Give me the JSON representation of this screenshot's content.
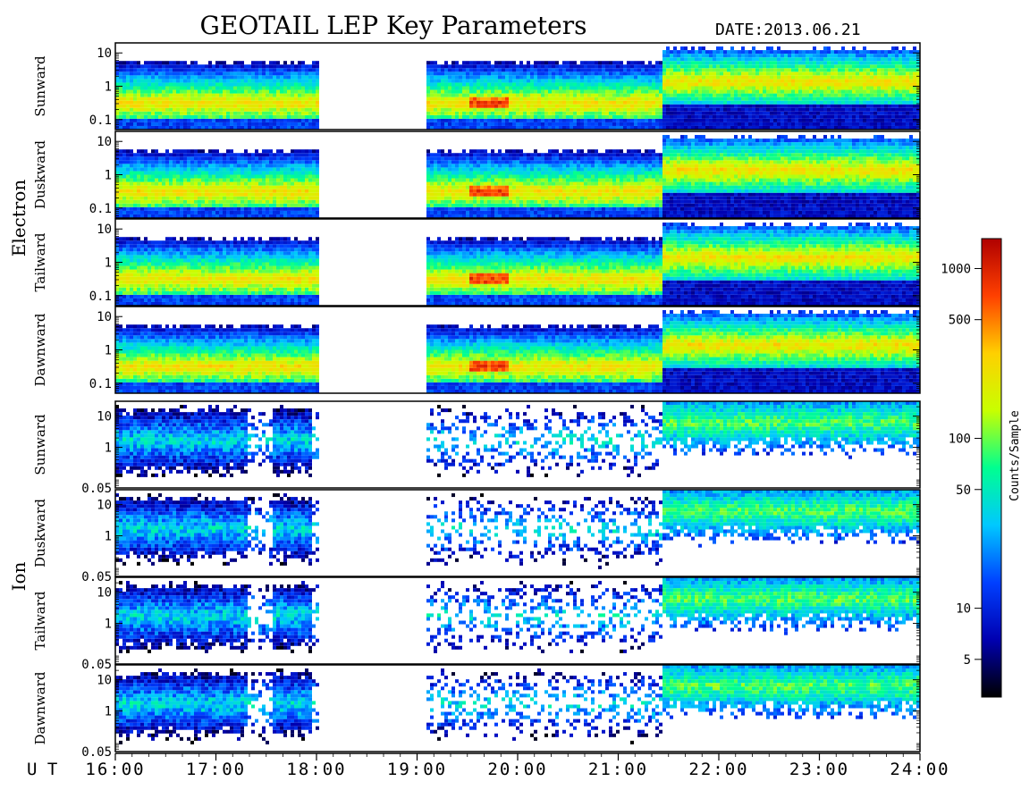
{
  "title": "GEOTAIL LEP Key Parameters",
  "date_label": "DATE:",
  "date_value": "2013.06.21",
  "group_labels": [
    "Electron",
    "Ion"
  ],
  "ut_label": "U T",
  "colorbar": {
    "label": "Counts/Sample",
    "scale": "log",
    "range": [
      3,
      1500
    ],
    "ticks": [
      "5",
      "10",
      "50",
      "100",
      "500",
      "1000"
    ],
    "tick_values": [
      5,
      10,
      50,
      100,
      500,
      1000
    ],
    "colors": [
      "#000000",
      "#0000b0",
      "#0040ff",
      "#00c8ff",
      "#00ff90",
      "#c8ff00",
      "#ffd000",
      "#ff4000",
      "#b00000"
    ]
  },
  "chart_data": {
    "type": "heatmap",
    "x_axis": {
      "label": "UT",
      "range": [
        "16:00",
        "24:00"
      ],
      "ticks": [
        "16:00",
        "17:00",
        "18:00",
        "19:00",
        "20:00",
        "21:00",
        "22:00",
        "23:00",
        "24:00"
      ]
    },
    "panels": [
      {
        "group": "Electron",
        "label": "Sunward",
        "y_scale": "log",
        "y_range": [
          0.05,
          20
        ],
        "y_ticks": [
          "0.1",
          "1",
          "10"
        ]
      },
      {
        "group": "Electron",
        "label": "Duskward",
        "y_scale": "log",
        "y_range": [
          0.05,
          20
        ],
        "y_ticks": [
          "0.1",
          "1",
          "10"
        ]
      },
      {
        "group": "Electron",
        "label": "Tailward",
        "y_scale": "log",
        "y_range": [
          0.05,
          20
        ],
        "y_ticks": [
          "0.1",
          "1",
          "10"
        ]
      },
      {
        "group": "Electron",
        "label": "Dawnward",
        "y_scale": "log",
        "y_range": [
          0.05,
          20
        ],
        "y_ticks": [
          "0.1",
          "1",
          "10"
        ]
      },
      {
        "group": "Ion",
        "label": "Sunward",
        "y_scale": "log",
        "y_range": [
          0.05,
          30
        ],
        "y_ticks": [
          "0.05",
          "1",
          "10"
        ]
      },
      {
        "group": "Ion",
        "label": "Duskward",
        "y_scale": "log",
        "y_range": [
          0.05,
          30
        ],
        "y_ticks": [
          "0.05",
          "1",
          "10"
        ]
      },
      {
        "group": "Ion",
        "label": "Tailward",
        "y_scale": "log",
        "y_range": [
          0.05,
          30
        ],
        "y_ticks": [
          "0.05",
          "1",
          "10"
        ]
      },
      {
        "group": "Ion",
        "label": "Dawnward",
        "y_scale": "log",
        "y_range": [
          0.05,
          30
        ],
        "y_ticks": [
          "0.05",
          "1",
          "10"
        ]
      }
    ],
    "data_intervals_ut": [
      [
        "16:00",
        "18:00"
      ],
      [
        "19:05",
        "21:25"
      ],
      [
        "21:25",
        "24:00"
      ]
    ],
    "data_gaps_ut": [
      [
        "18:00",
        "19:05"
      ]
    ]
  }
}
